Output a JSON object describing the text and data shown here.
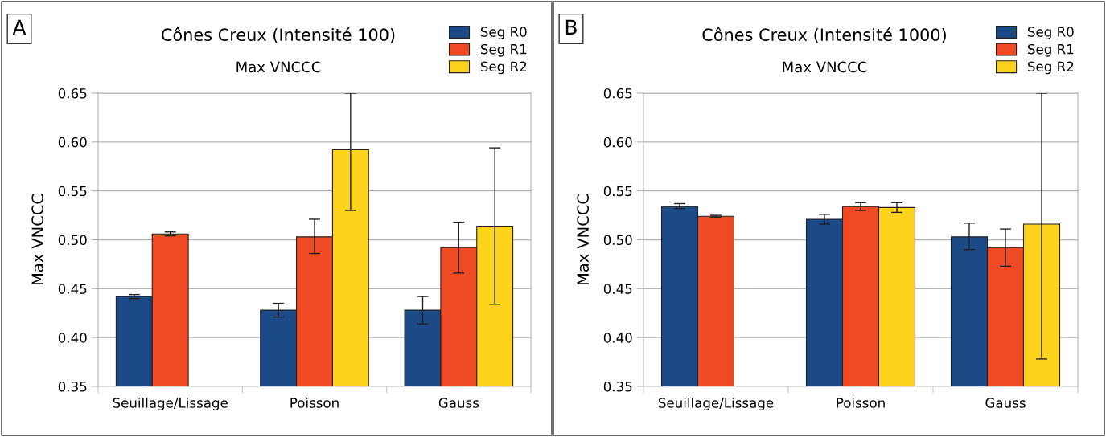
{
  "chart_data": [
    {
      "type": "bar",
      "title": "Cônes Creux (Intensité 100)",
      "subtitle": "Max VNCCC",
      "ylabel": "Max VNCCC",
      "annotations": [
        "A"
      ],
      "categories": [
        "Seuillage/Lissage",
        "Poisson",
        "Gauss"
      ],
      "ylim": [
        0.35,
        0.65
      ],
      "yticks": [
        {
          "value": 0.35,
          "label": "0.35"
        },
        {
          "value": 0.4,
          "label": "0.40"
        },
        {
          "value": 0.45,
          "label": "0.45"
        },
        {
          "value": 0.5,
          "label": "0.50"
        },
        {
          "value": 0.55,
          "label": "0.55"
        },
        {
          "value": 0.6,
          "label": "0.60"
        },
        {
          "value": 0.65,
          "label": "0.65"
        }
      ],
      "grid": "y",
      "legend": "top right",
      "series": [
        {
          "name": "Seg R0",
          "color": "#1b4a87",
          "values": [
            0.442,
            0.428,
            0.428
          ],
          "errors": [
            [
              0.44,
              0.444
            ],
            [
              0.421,
              0.435
            ],
            [
              0.414,
              0.442
            ]
          ]
        },
        {
          "name": "Seg R1",
          "color": "#ef4a23",
          "values": [
            0.506,
            0.503,
            0.492
          ],
          "errors": [
            [
              0.504,
              0.508
            ],
            [
              0.486,
              0.521
            ],
            [
              0.466,
              0.518
            ]
          ]
        },
        {
          "name": "Seg R2",
          "color": "#fdd31e",
          "values": [
            null,
            0.592,
            0.514
          ],
          "errors": [
            null,
            [
              0.53,
              0.65
            ],
            [
              0.434,
              0.594
            ]
          ]
        }
      ]
    },
    {
      "type": "bar",
      "title": "Cônes Creux (Intensité 1000)",
      "subtitle": "Max VNCCC",
      "ylabel": "Max VNCCC",
      "annotations": [
        "B"
      ],
      "categories": [
        "Seuillage/Lissage",
        "Poisson",
        "Gauss"
      ],
      "ylim": [
        0.35,
        0.65
      ],
      "yticks": [
        {
          "value": 0.35,
          "label": "0.35"
        },
        {
          "value": 0.4,
          "label": "0.40"
        },
        {
          "value": 0.45,
          "label": "0.45"
        },
        {
          "value": 0.5,
          "label": "0.50"
        },
        {
          "value": 0.55,
          "label": "0.55"
        },
        {
          "value": 0.6,
          "label": "0.60"
        },
        {
          "value": 0.65,
          "label": "0.65"
        }
      ],
      "grid": "y",
      "legend": "top right",
      "series": [
        {
          "name": "Seg R0",
          "color": "#1b4a87",
          "values": [
            0.534,
            0.521,
            0.503
          ],
          "errors": [
            [
              0.532,
              0.537
            ],
            [
              0.516,
              0.526
            ],
            [
              0.49,
              0.517
            ]
          ]
        },
        {
          "name": "Seg R1",
          "color": "#ef4a23",
          "values": [
            0.524,
            0.534,
            0.492
          ],
          "errors": [
            [
              0.523,
              0.525
            ],
            [
              0.53,
              0.538
            ],
            [
              0.473,
              0.511
            ]
          ]
        },
        {
          "name": "Seg R2",
          "color": "#fdd31e",
          "values": [
            null,
            0.533,
            0.516
          ],
          "errors": [
            null,
            [
              0.528,
              0.538
            ],
            [
              0.378,
              0.65
            ]
          ]
        }
      ]
    }
  ]
}
